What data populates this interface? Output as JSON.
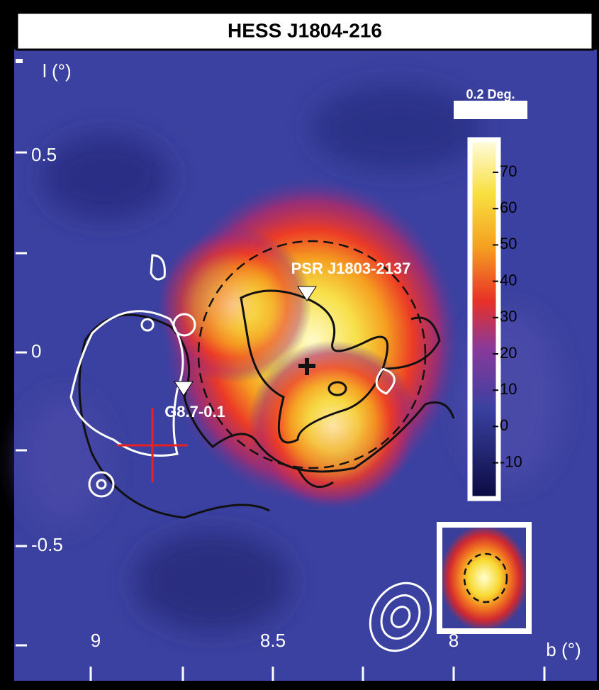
{
  "title": "HESS J1804-216",
  "y_axis": {
    "label": "l (°)",
    "ticks": [
      0.5,
      0,
      -0.5
    ]
  },
  "x_axis": {
    "label": "b (°)",
    "ticks": [
      9,
      8.5,
      8
    ]
  },
  "colorbar": {
    "scale_label": "0.2 Deg.",
    "ticks": [
      70,
      60,
      50,
      40,
      30,
      20,
      10,
      0,
      -10
    ]
  },
  "annotations": {
    "pulsar": "PSR J1803-2137",
    "snr": "G8.7-0.1"
  }
}
